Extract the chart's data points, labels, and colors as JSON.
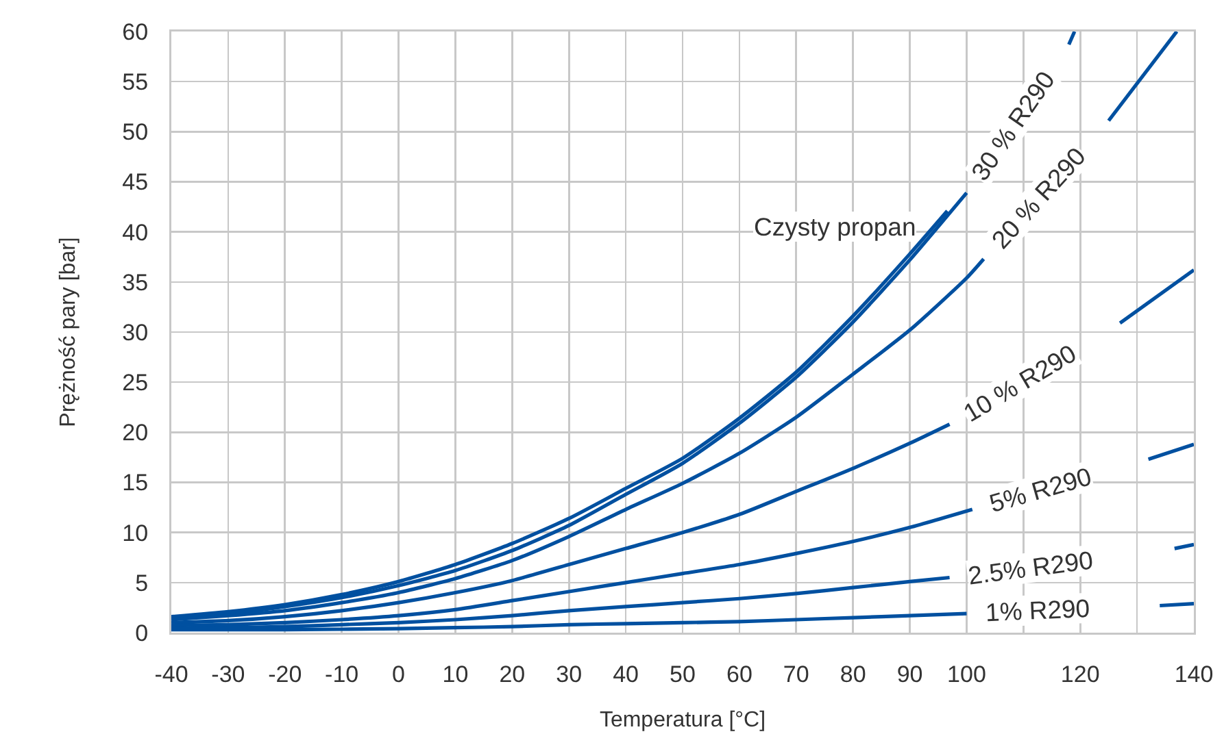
{
  "chart_data": {
    "type": "line",
    "xlabel": "Temperatura [°C]",
    "ylabel": "Prężność pary [bar]",
    "xlim": [
      -40,
      140
    ],
    "ylim": [
      0,
      60
    ],
    "xticks": [
      -40,
      -30,
      -20,
      -10,
      0,
      10,
      20,
      30,
      40,
      50,
      60,
      70,
      80,
      90,
      100,
      {
        "value": 110,
        "label": null
      },
      120,
      {
        "value": 130,
        "label": null
      },
      140
    ],
    "yticks": [
      0,
      5,
      10,
      15,
      20,
      25,
      30,
      35,
      40,
      45,
      50,
      55,
      60
    ],
    "grid": true,
    "marker": "none",
    "line_style": "solid",
    "series": [
      {
        "name": "Czysty propan",
        "color": "#0050a0",
        "x": [
          -40,
          -30,
          -20,
          -10,
          0,
          10,
          20,
          30,
          40,
          50,
          60,
          70,
          80,
          90,
          96.6
        ],
        "values": [
          1.6,
          2.1,
          2.8,
          3.8,
          5.1,
          6.8,
          8.9,
          11.4,
          14.4,
          17.4,
          21.4,
          26.0,
          31.6,
          37.8,
          42.1
        ]
      },
      {
        "name": "30 % R290",
        "color": "#0050a0",
        "x": [
          -40,
          -30,
          -20,
          -10,
          0,
          10,
          20,
          30,
          40,
          50,
          60,
          70,
          80,
          90,
          100,
          109,
          118,
          119
        ],
        "values": [
          1.5,
          1.9,
          2.6,
          3.5,
          4.7,
          6.2,
          8.2,
          10.7,
          13.8,
          16.9,
          20.9,
          25.5,
          31.0,
          37.2,
          43.9,
          null,
          58.7,
          60
        ]
      },
      {
        "name": "20 % R290",
        "color": "#0050a0",
        "x": [
          -40,
          -30,
          -20,
          -10,
          0,
          10,
          20,
          30,
          40,
          50,
          60,
          70,
          80,
          90,
          100,
          103,
          114,
          125,
          137
        ],
        "values": [
          1.3,
          1.7,
          2.2,
          3.0,
          4.0,
          5.4,
          7.2,
          9.6,
          12.3,
          14.9,
          17.9,
          21.5,
          25.8,
          30.2,
          35.4,
          37.3,
          null,
          51.1,
          60
        ]
      },
      {
        "name": "10 % R290",
        "color": "#0050a0",
        "x": [
          -40,
          -30,
          -20,
          -10,
          0,
          10,
          20,
          30,
          40,
          50,
          60,
          70,
          80,
          90,
          97,
          112,
          127,
          140
        ],
        "values": [
          1.0,
          1.2,
          1.6,
          2.2,
          3.0,
          4.0,
          5.2,
          6.8,
          8.4,
          10.0,
          11.8,
          14.1,
          16.4,
          18.9,
          20.8,
          null,
          30.9,
          36.2
        ]
      },
      {
        "name": "5% R290",
        "color": "#0050a0",
        "x": [
          -40,
          -30,
          -20,
          -10,
          0,
          10,
          20,
          30,
          40,
          50,
          60,
          70,
          80,
          90,
          101,
          116,
          132,
          140
        ],
        "values": [
          0.7,
          0.8,
          1.0,
          1.3,
          1.7,
          2.3,
          3.2,
          4.1,
          5.0,
          5.9,
          6.8,
          7.9,
          9.1,
          10.5,
          12.3,
          null,
          17.3,
          18.8
        ]
      },
      {
        "name": "2.5% R290",
        "color": "#0050a0",
        "x": [
          -40,
          -30,
          -20,
          -10,
          0,
          10,
          20,
          30,
          40,
          50,
          60,
          70,
          80,
          90,
          97,
          117,
          136.6,
          140
        ],
        "values": [
          0.4,
          0.5,
          0.6,
          0.8,
          1.0,
          1.3,
          1.7,
          2.2,
          2.6,
          3.0,
          3.4,
          3.9,
          4.5,
          5.1,
          5.5,
          null,
          8.4,
          8.8
        ]
      },
      {
        "name": "1% R290",
        "color": "#0050a0",
        "x": [
          -40,
          -20,
          0,
          10,
          20,
          30,
          40,
          50,
          60,
          70,
          80,
          90,
          100,
          117,
          134,
          140
        ],
        "values": [
          0.3,
          0.3,
          0.4,
          0.5,
          0.6,
          0.8,
          0.9,
          1.0,
          1.1,
          1.3,
          1.5,
          1.7,
          1.9,
          null,
          2.7,
          2.9
        ]
      }
    ]
  }
}
